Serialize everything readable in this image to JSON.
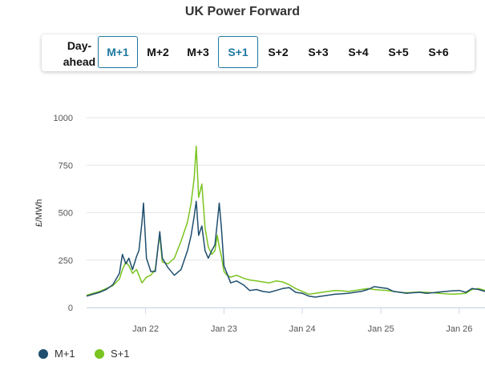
{
  "title": "UK Power Forward",
  "tabs": [
    {
      "label": "Day-ahead",
      "active": false
    },
    {
      "label": "M+1",
      "active": true
    },
    {
      "label": "M+2",
      "active": false
    },
    {
      "label": "M+3",
      "active": false
    },
    {
      "label": "S+1",
      "active": true
    },
    {
      "label": "S+2",
      "active": false
    },
    {
      "label": "S+3",
      "active": false
    },
    {
      "label": "S+4",
      "active": false
    },
    {
      "label": "S+5",
      "active": false
    },
    {
      "label": "S+6",
      "active": false
    }
  ],
  "chart_data": {
    "type": "line",
    "title": "",
    "xlabel": "",
    "ylabel": "£/MWh",
    "ylim": [
      0,
      1000
    ],
    "yticks": [
      0,
      250,
      500,
      750,
      1000
    ],
    "xticks": [
      "Jan 22",
      "Jan 23",
      "Jan 24",
      "Jan 25",
      "Jan 26"
    ],
    "xlim": [
      "2021-04-01",
      "2026-05-01"
    ],
    "grid": true,
    "legend_position": "bottom-left",
    "series": [
      {
        "name": "M+1",
        "color": "#1f4e6e",
        "points": [
          [
            "2021-04-01",
            60
          ],
          [
            "2021-05-01",
            70
          ],
          [
            "2021-06-01",
            80
          ],
          [
            "2021-07-01",
            95
          ],
          [
            "2021-08-01",
            120
          ],
          [
            "2021-09-01",
            180
          ],
          [
            "2021-09-15",
            280
          ],
          [
            "2021-10-01",
            230
          ],
          [
            "2021-10-15",
            260
          ],
          [
            "2021-11-01",
            200
          ],
          [
            "2021-11-20",
            270
          ],
          [
            "2021-12-01",
            300
          ],
          [
            "2021-12-15",
            450
          ],
          [
            "2021-12-22",
            550
          ],
          [
            "2022-01-05",
            260
          ],
          [
            "2022-01-25",
            190
          ],
          [
            "2022-02-15",
            190
          ],
          [
            "2022-03-01",
            330
          ],
          [
            "2022-03-08",
            400
          ],
          [
            "2022-03-20",
            260
          ],
          [
            "2022-04-15",
            210
          ],
          [
            "2022-05-15",
            170
          ],
          [
            "2022-06-15",
            200
          ],
          [
            "2022-07-15",
            300
          ],
          [
            "2022-08-01",
            380
          ],
          [
            "2022-08-15",
            480
          ],
          [
            "2022-08-25",
            560
          ],
          [
            "2022-09-05",
            380
          ],
          [
            "2022-09-20",
            430
          ],
          [
            "2022-10-05",
            300
          ],
          [
            "2022-10-20",
            260
          ],
          [
            "2022-11-05",
            300
          ],
          [
            "2022-11-20",
            330
          ],
          [
            "2022-12-01",
            450
          ],
          [
            "2022-12-10",
            550
          ],
          [
            "2022-12-20",
            420
          ],
          [
            "2023-01-01",
            220
          ],
          [
            "2023-01-15",
            180
          ],
          [
            "2023-02-01",
            130
          ],
          [
            "2023-03-01",
            140
          ],
          [
            "2023-04-01",
            120
          ],
          [
            "2023-05-01",
            90
          ],
          [
            "2023-06-01",
            95
          ],
          [
            "2023-07-01",
            85
          ],
          [
            "2023-08-01",
            80
          ],
          [
            "2023-09-01",
            90
          ],
          [
            "2023-10-01",
            100
          ],
          [
            "2023-11-01",
            105
          ],
          [
            "2023-12-01",
            80
          ],
          [
            "2024-01-01",
            75
          ],
          [
            "2024-02-01",
            60
          ],
          [
            "2024-03-01",
            55
          ],
          [
            "2024-04-01",
            60
          ],
          [
            "2024-05-01",
            65
          ],
          [
            "2024-06-01",
            70
          ],
          [
            "2024-07-01",
            72
          ],
          [
            "2024-08-01",
            75
          ],
          [
            "2024-09-01",
            80
          ],
          [
            "2024-10-01",
            85
          ],
          [
            "2024-11-01",
            95
          ],
          [
            "2024-12-01",
            110
          ],
          [
            "2025-01-01",
            105
          ],
          [
            "2025-02-01",
            100
          ],
          [
            "2025-03-01",
            85
          ],
          [
            "2025-04-01",
            80
          ],
          [
            "2025-05-01",
            75
          ],
          [
            "2025-06-01",
            78
          ],
          [
            "2025-07-01",
            80
          ],
          [
            "2025-08-01",
            75
          ],
          [
            "2025-09-01",
            78
          ],
          [
            "2025-10-01",
            82
          ],
          [
            "2025-11-01",
            85
          ],
          [
            "2025-12-01",
            88
          ],
          [
            "2026-01-01",
            90
          ],
          [
            "2026-02-01",
            80
          ],
          [
            "2026-03-01",
            100
          ],
          [
            "2026-04-01",
            95
          ],
          [
            "2026-05-01",
            85
          ]
        ]
      },
      {
        "name": "S+1",
        "color": "#7ac41f",
        "points": [
          [
            "2021-04-01",
            65
          ],
          [
            "2021-05-01",
            75
          ],
          [
            "2021-06-01",
            85
          ],
          [
            "2021-07-01",
            100
          ],
          [
            "2021-08-01",
            115
          ],
          [
            "2021-09-01",
            150
          ],
          [
            "2021-09-15",
            200
          ],
          [
            "2021-10-01",
            240
          ],
          [
            "2021-10-15",
            220
          ],
          [
            "2021-11-01",
            180
          ],
          [
            "2021-11-20",
            200
          ],
          [
            "2021-12-01",
            170
          ],
          [
            "2021-12-15",
            130
          ],
          [
            "2022-01-05",
            160
          ],
          [
            "2022-01-25",
            170
          ],
          [
            "2022-02-15",
            200
          ],
          [
            "2022-03-01",
            330
          ],
          [
            "2022-03-08",
            380
          ],
          [
            "2022-03-20",
            240
          ],
          [
            "2022-04-15",
            230
          ],
          [
            "2022-05-15",
            260
          ],
          [
            "2022-06-15",
            350
          ],
          [
            "2022-07-15",
            450
          ],
          [
            "2022-08-01",
            550
          ],
          [
            "2022-08-15",
            680
          ],
          [
            "2022-08-25",
            850
          ],
          [
            "2022-09-05",
            580
          ],
          [
            "2022-09-20",
            650
          ],
          [
            "2022-10-05",
            420
          ],
          [
            "2022-10-20",
            320
          ],
          [
            "2022-11-05",
            280
          ],
          [
            "2022-11-20",
            300
          ],
          [
            "2022-12-01",
            380
          ],
          [
            "2022-12-10",
            320
          ],
          [
            "2022-12-20",
            270
          ],
          [
            "2023-01-01",
            190
          ],
          [
            "2023-01-15",
            170
          ],
          [
            "2023-02-01",
            160
          ],
          [
            "2023-03-01",
            170
          ],
          [
            "2023-04-01",
            155
          ],
          [
            "2023-05-01",
            145
          ],
          [
            "2023-06-01",
            140
          ],
          [
            "2023-07-01",
            135
          ],
          [
            "2023-08-01",
            130
          ],
          [
            "2023-09-01",
            140
          ],
          [
            "2023-10-01",
            135
          ],
          [
            "2023-11-01",
            120
          ],
          [
            "2023-12-01",
            100
          ],
          [
            "2024-01-01",
            85
          ],
          [
            "2024-02-01",
            70
          ],
          [
            "2024-03-01",
            75
          ],
          [
            "2024-04-01",
            80
          ],
          [
            "2024-05-01",
            85
          ],
          [
            "2024-06-01",
            90
          ],
          [
            "2024-07-01",
            88
          ],
          [
            "2024-08-01",
            85
          ],
          [
            "2024-09-01",
            90
          ],
          [
            "2024-10-01",
            95
          ],
          [
            "2024-11-01",
            100
          ],
          [
            "2024-12-01",
            95
          ],
          [
            "2025-01-01",
            92
          ],
          [
            "2025-02-01",
            90
          ],
          [
            "2025-03-01",
            85
          ],
          [
            "2025-04-01",
            80
          ],
          [
            "2025-05-01",
            78
          ],
          [
            "2025-06-01",
            80
          ],
          [
            "2025-07-01",
            82
          ],
          [
            "2025-08-01",
            80
          ],
          [
            "2025-09-01",
            78
          ],
          [
            "2025-10-01",
            75
          ],
          [
            "2025-11-01",
            72
          ],
          [
            "2025-12-01",
            70
          ],
          [
            "2026-01-01",
            72
          ],
          [
            "2026-02-01",
            75
          ],
          [
            "2026-03-01",
            95
          ],
          [
            "2026-04-01",
            100
          ],
          [
            "2026-05-01",
            90
          ]
        ]
      }
    ]
  }
}
